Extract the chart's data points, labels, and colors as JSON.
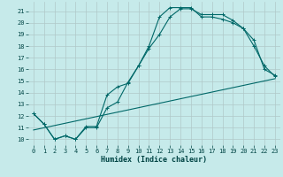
{
  "xlabel": "Humidex (Indice chaleur)",
  "bg_color": "#c6eaea",
  "grid_color": "#b0c8c8",
  "line_color": "#006868",
  "xlim": [
    -0.5,
    23.5
  ],
  "ylim": [
    9.5,
    21.8
  ],
  "xticks": [
    0,
    1,
    2,
    3,
    4,
    5,
    6,
    7,
    8,
    9,
    10,
    11,
    12,
    13,
    14,
    15,
    16,
    17,
    18,
    19,
    20,
    21,
    22,
    23
  ],
  "yticks": [
    10,
    11,
    12,
    13,
    14,
    15,
    16,
    17,
    18,
    19,
    20,
    21
  ],
  "line1_x": [
    0,
    1,
    2,
    3,
    4,
    5,
    6,
    7,
    8,
    9,
    10,
    11,
    12,
    13,
    14,
    15,
    16,
    17,
    18,
    19,
    20,
    21,
    22,
    23
  ],
  "line1_y": [
    12.2,
    11.3,
    10.0,
    10.3,
    10.0,
    11.1,
    11.1,
    13.8,
    14.5,
    14.8,
    16.3,
    17.8,
    19.0,
    20.5,
    21.2,
    21.2,
    20.7,
    20.7,
    20.7,
    20.2,
    19.5,
    18.0,
    16.3,
    15.4
  ],
  "line2_x": [
    0,
    1,
    2,
    3,
    4,
    5,
    6,
    7,
    8,
    9,
    10,
    11,
    12,
    13,
    14,
    15,
    16,
    17,
    18,
    19,
    20,
    21,
    22,
    23
  ],
  "line2_y": [
    12.2,
    11.3,
    10.0,
    10.3,
    10.0,
    11.0,
    11.0,
    12.7,
    13.2,
    14.9,
    16.3,
    18.0,
    20.5,
    21.3,
    21.3,
    21.3,
    20.5,
    20.5,
    20.3,
    20.0,
    19.5,
    18.5,
    16.0,
    15.5
  ],
  "line3_x": [
    0,
    23
  ],
  "line3_y": [
    10.8,
    15.2
  ]
}
